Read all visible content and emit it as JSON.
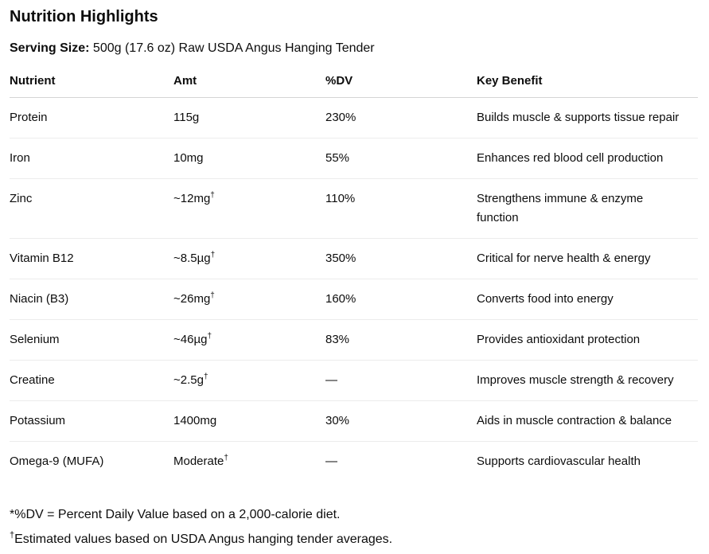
{
  "page": {
    "title": "Nutrition Highlights",
    "serving_label": "Serving Size:",
    "serving_value": " 500g (17.6 oz) Raw USDA Angus Hanging Tender"
  },
  "table": {
    "columns": [
      "Nutrient",
      "Amt",
      "%DV",
      "Key Benefit"
    ],
    "rows": [
      {
        "nutrient": "Protein",
        "amt": "115g",
        "amt_sup": "",
        "dv": "230%",
        "benefit": "Builds muscle & supports tissue repair"
      },
      {
        "nutrient": "Iron",
        "amt": "10mg",
        "amt_sup": "",
        "dv": "55%",
        "benefit": "Enhances red blood cell production"
      },
      {
        "nutrient": "Zinc",
        "amt": "~12mg",
        "amt_sup": "†",
        "dv": "110%",
        "benefit": "Strengthens immune & enzyme\nfunction"
      },
      {
        "nutrient": "Vitamin B12",
        "amt": "~8.5µg",
        "amt_sup": "†",
        "dv": "350%",
        "benefit": "Critical for nerve health & energy"
      },
      {
        "nutrient": "Niacin (B3)",
        "amt": "~26mg",
        "amt_sup": "†",
        "dv": "160%",
        "benefit": "Converts food into energy"
      },
      {
        "nutrient": "Selenium",
        "amt": "~46µg",
        "amt_sup": "†",
        "dv": "83%",
        "benefit": "Provides antioxidant protection"
      },
      {
        "nutrient": "Creatine",
        "amt": "~2.5g",
        "amt_sup": "†",
        "dv": "—",
        "benefit": "Improves muscle strength & recovery"
      },
      {
        "nutrient": "Potassium",
        "amt": "1400mg",
        "amt_sup": "",
        "dv": "30%",
        "benefit": "Aids in muscle contraction & balance"
      },
      {
        "nutrient": "Omega-9 (MUFA)",
        "amt": "Moderate",
        "amt_sup": "†",
        "dv": "—",
        "benefit": "Supports cardiovascular health"
      }
    ]
  },
  "footnotes": {
    "dv_note": "*%DV = Percent Daily Value based on a 2,000-calorie diet.",
    "estimated_marker": "†",
    "estimated_text": "Estimated values based on USDA Angus hanging tender averages."
  },
  "colors": {
    "text": "#0d0d0d",
    "header_border": "#d5d5d5",
    "row_border": "#ececec",
    "background": "#ffffff"
  }
}
